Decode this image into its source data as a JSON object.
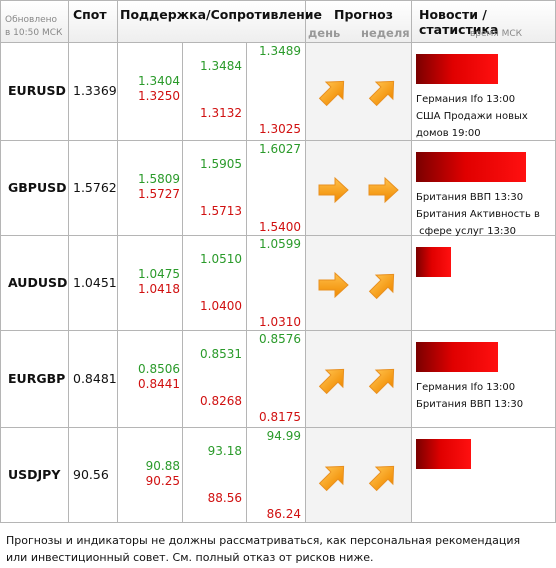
{
  "header": {
    "updated": [
      "Обновлено",
      "в 10:50 МСК"
    ],
    "spot": "Спот",
    "levels": "Поддержка/Сопротивление",
    "forecast": "Прогноз",
    "day": "день",
    "week": "неделя",
    "news": "Новости / статистика",
    "news_time": "время МСК"
  },
  "rows": [
    {
      "pair": "EURUSD",
      "spot": "1.3369",
      "levels": [
        [
          "1.3404",
          "1.3250"
        ],
        [
          "1.3484",
          "1.3132"
        ],
        [
          "1.3489",
          "1.3025"
        ]
      ],
      "news": [
        "Германия Ifo 13:00",
        "США Продажи новых",
        "домов 19:00"
      ]
    },
    {
      "pair": "GBPUSD",
      "spot": "1.5762",
      "levels": [
        [
          "1.5809",
          "1.5727"
        ],
        [
          "1.5905",
          "1.5713"
        ],
        [
          "1.6027",
          "1.5400"
        ]
      ],
      "news": [
        "Британия ВВП 13:30",
        "Британия Активность в",
        " сфере услуг 13:30"
      ]
    },
    {
      "pair": "AUDUSD",
      "spot": "1.0451",
      "levels": [
        [
          "1.0475",
          "1.0418"
        ],
        [
          "1.0510",
          "1.0400"
        ],
        [
          "1.0599",
          "1.0310"
        ]
      ],
      "news": []
    },
    {
      "pair": "EURGBP",
      "spot": "0.8481",
      "levels": [
        [
          "0.8506",
          "0.8441"
        ],
        [
          "0.8531",
          "0.8268"
        ],
        [
          "0.8576",
          "0.8175"
        ]
      ],
      "news": [
        "Германия Ifo 13:00",
        "Британия ВВП 13:30"
      ]
    },
    {
      "pair": "USDJPY",
      "spot": "90.56",
      "levels": [
        [
          "90.88",
          "90.25"
        ],
        [
          "93.18",
          "88.56"
        ],
        [
          "94.99",
          "86.24"
        ]
      ],
      "news": []
    }
  ],
  "footer": "Прогнозы и индикаторы не должны рассматриваться, как персональная рекомендация или инвестиционный совет. См. полный отказ от рисков ниже."
}
